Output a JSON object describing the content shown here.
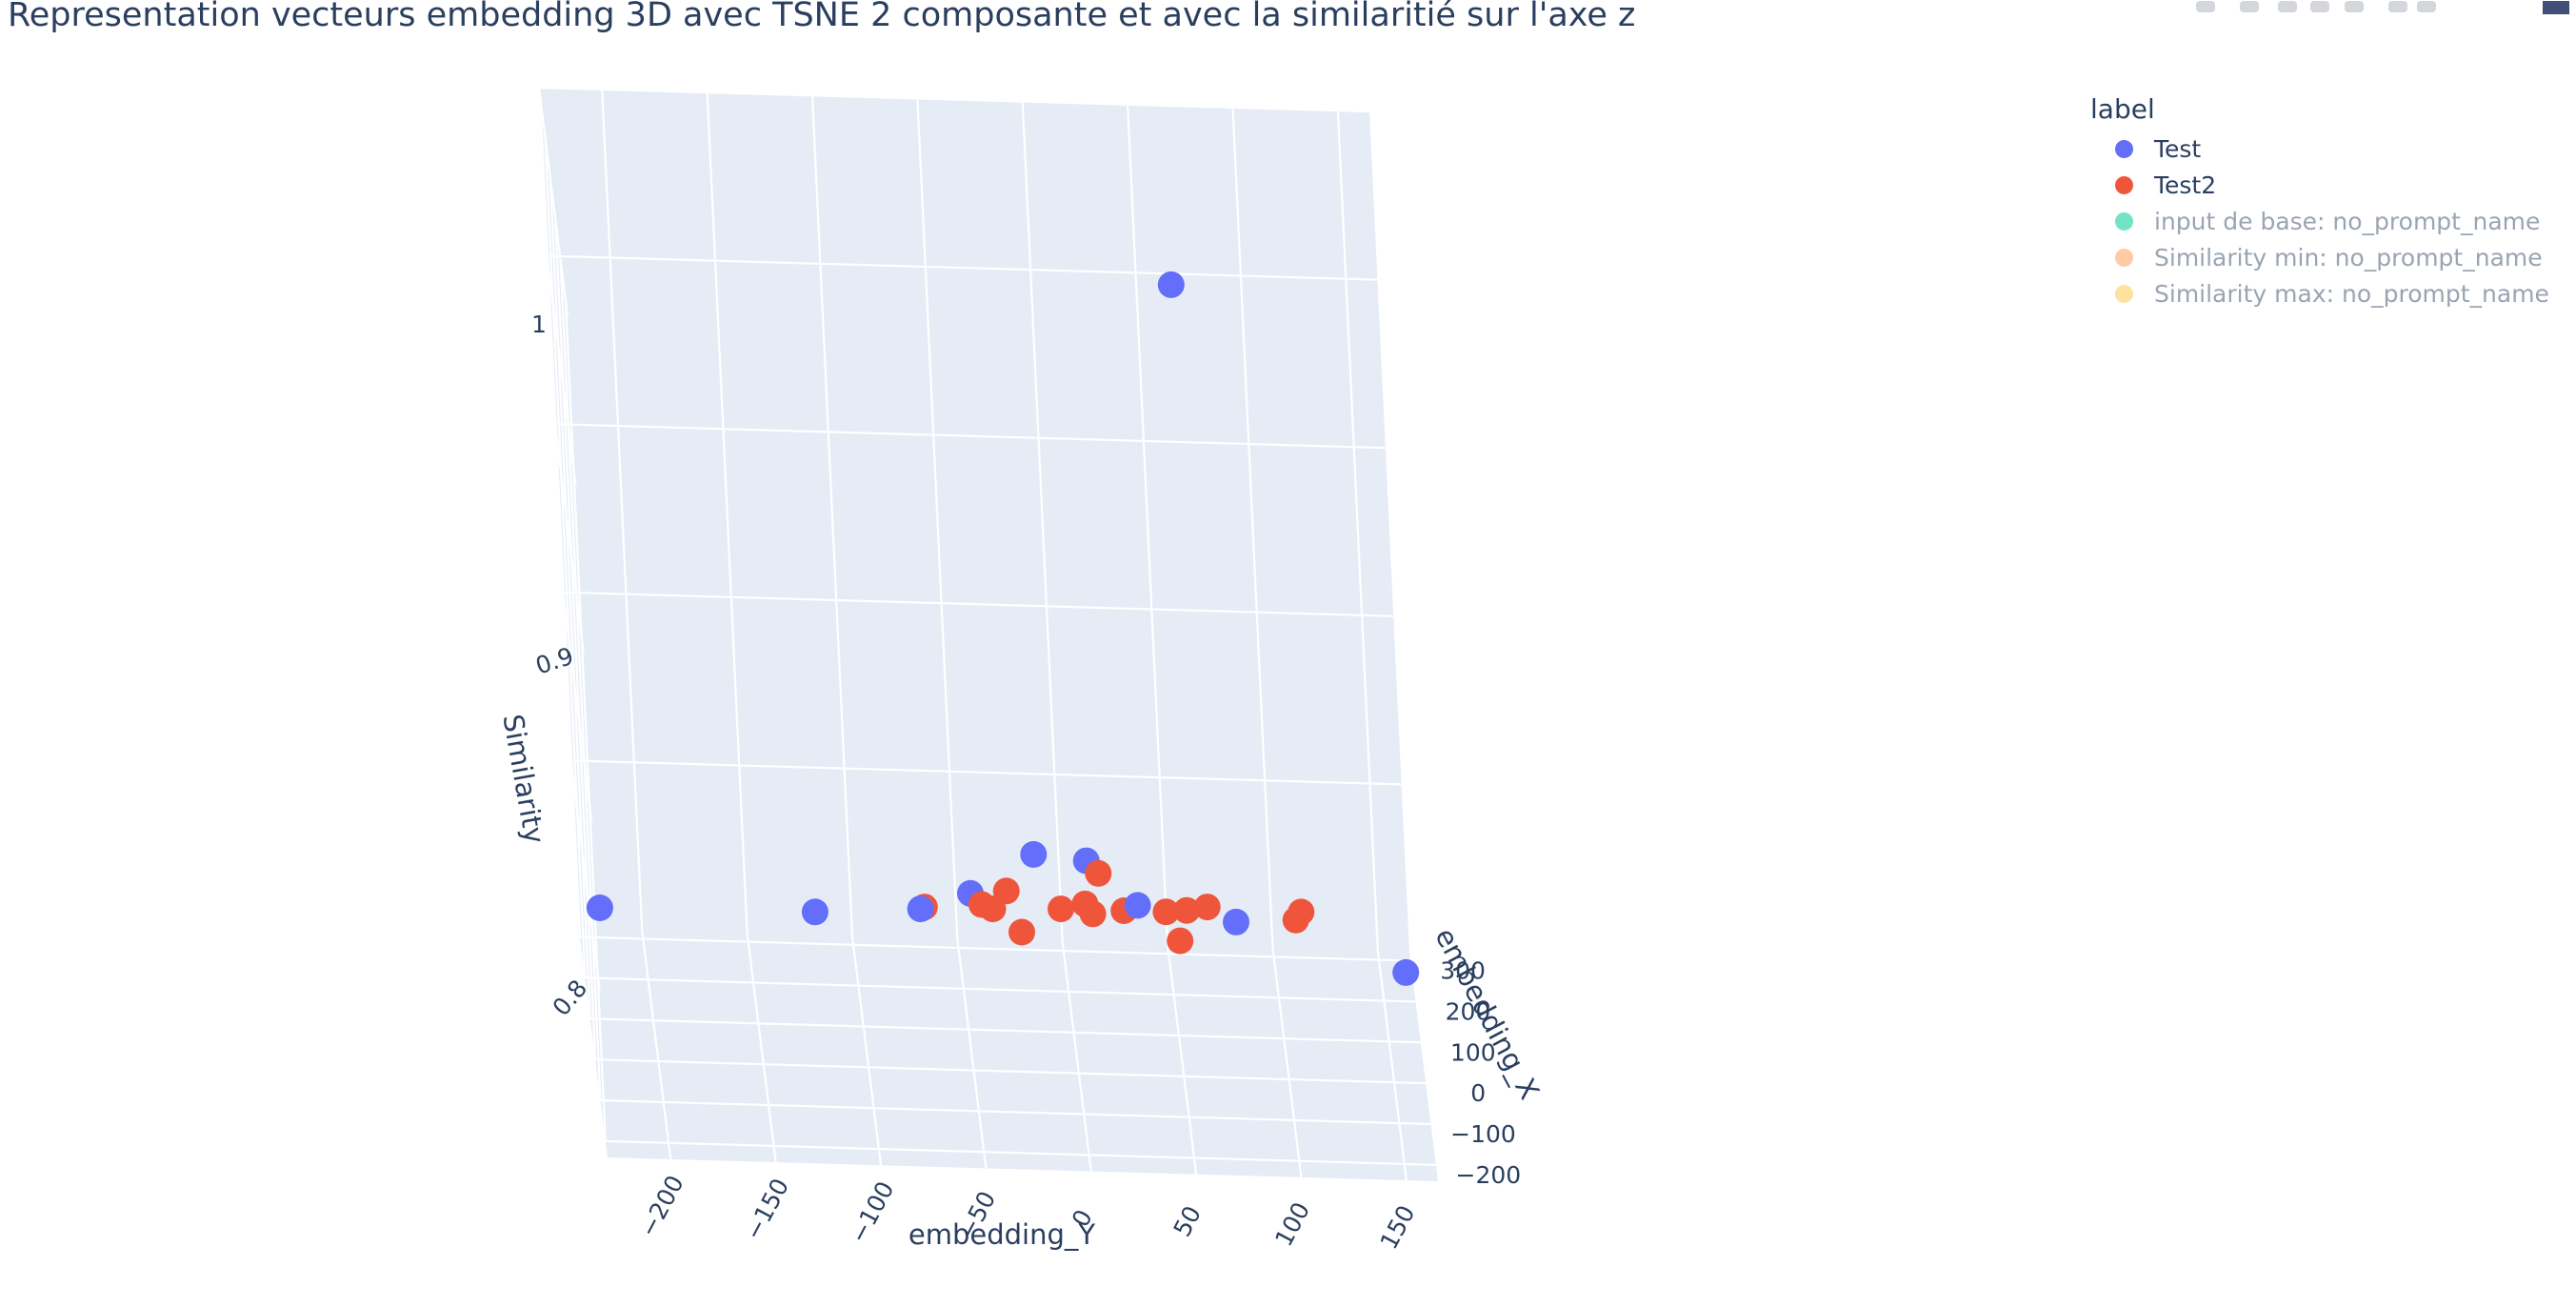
{
  "chart_data": {
    "type": "scatter",
    "title": "Representation vecteurs embedding 3D avec TSNE 2 composante et avec la similaritié sur l'axe z",
    "xlabel": "embedding_Y",
    "ylabel": "embedding_X",
    "zlabel": "Similarity",
    "x_ticks": [
      "−200",
      "−150",
      "−100",
      "−50",
      "0",
      "50",
      "100",
      "150"
    ],
    "y_ticks": [
      "−200",
      "−100",
      "0",
      "100",
      "200",
      "300"
    ],
    "z_ticks": [
      "0.8",
      "0.9",
      "1"
    ],
    "xlim": [
      -230,
      165
    ],
    "ylim": [
      -240,
      320
    ],
    "zlim": [
      0.75,
      1.0
    ],
    "legend": {
      "title": "label",
      "placement": "top-right",
      "items": [
        {
          "name": "Test",
          "color": "#636efa",
          "visible": true
        },
        {
          "name": "Test2",
          "color": "#ef553b",
          "visible": true
        },
        {
          "name": "input de base: no_prompt_name",
          "color": "#00cc96",
          "visible": false
        },
        {
          "name": "Similarity min: no_prompt_name",
          "color": "#ffa15a",
          "visible": false
        },
        {
          "name": "Similarity max: no_prompt_name",
          "color": "#fecb52",
          "visible": false
        }
      ]
    },
    "series": [
      {
        "name": "Test",
        "color": "#636efa",
        "points": [
          {
            "x": -225,
            "y": -40,
            "z": 0.8
          },
          {
            "x": -125,
            "y": -200,
            "z": 0.82
          },
          {
            "x": -72,
            "y": -20,
            "z": 0.8
          },
          {
            "x": -50,
            "y": -160,
            "z": 0.822
          },
          {
            "x": -20,
            "y": -225,
            "z": 0.842
          },
          {
            "x": 10,
            "y": 110,
            "z": 0.8
          },
          {
            "x": 30,
            "y": -120,
            "z": 0.815
          },
          {
            "x": 75,
            "y": -220,
            "z": 0.823
          },
          {
            "x": 155,
            "y": -200,
            "z": 0.807
          },
          {
            "x": 60,
            "y": -120,
            "z": 1.0
          }
        ]
      },
      {
        "name": "Test2",
        "color": "#ef553b",
        "points": [
          {
            "x": -70,
            "y": -15,
            "z": 0.8
          },
          {
            "x": -45,
            "y": -170,
            "z": 0.82
          },
          {
            "x": -40,
            "y": -180,
            "z": 0.82
          },
          {
            "x": -30,
            "y": 30,
            "z": 0.8
          },
          {
            "x": -25,
            "y": -70,
            "z": 0.8
          },
          {
            "x": -5,
            "y": -10,
            "z": 0.8
          },
          {
            "x": 5,
            "y": -120,
            "z": 0.815
          },
          {
            "x": 10,
            "y": -20,
            "z": 0.8
          },
          {
            "x": 15,
            "y": 80,
            "z": 0.8
          },
          {
            "x": 25,
            "y": -10,
            "z": 0.8
          },
          {
            "x": 45,
            "y": -10,
            "z": 0.8
          },
          {
            "x": 50,
            "y": -80,
            "z": 0.8
          },
          {
            "x": 55,
            "y": -5,
            "z": 0.8
          },
          {
            "x": 65,
            "y": 5,
            "z": 0.8
          },
          {
            "x": 105,
            "y": -120,
            "z": 0.812
          },
          {
            "x": 108,
            "y": -100,
            "z": 0.812
          }
        ]
      }
    ]
  },
  "modebar_icons": [
    "camera-icon",
    "zoom-icon",
    "pan-icon",
    "orbit-icon",
    "turntable-icon",
    "home-icon",
    "camera-view-icon",
    "plotly-logo-icon"
  ]
}
